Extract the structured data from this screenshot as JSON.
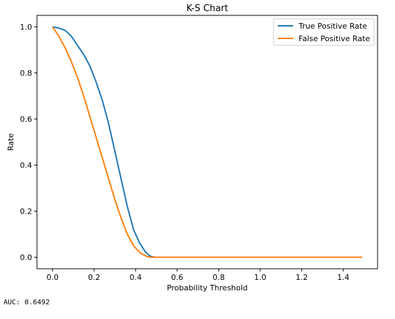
{
  "chart_data": {
    "type": "line",
    "title": "K-S Chart",
    "xlabel": "Probability Threshold",
    "ylabel": "Rate",
    "xlim": [
      -0.075,
      1.565
    ],
    "ylim": [
      -0.05,
      1.05
    ],
    "xticks": [
      "0.0",
      "0.2",
      "0.4",
      "0.6",
      "0.8",
      "1.0",
      "1.2",
      "1.4"
    ],
    "yticks": [
      "0.0",
      "0.2",
      "0.4",
      "0.6",
      "0.8",
      "1.0"
    ],
    "xtick_values": [
      0.0,
      0.2,
      0.4,
      0.6,
      0.8,
      1.0,
      1.2,
      1.4
    ],
    "ytick_values": [
      0.0,
      0.2,
      0.4,
      0.6,
      0.8,
      1.0
    ],
    "grid": false,
    "legend_position": "top-right",
    "series": [
      {
        "name": "True Positive Rate",
        "color": "#1f77b4",
        "x": [
          0.0,
          0.03,
          0.06,
          0.09,
          0.12,
          0.15,
          0.18,
          0.21,
          0.24,
          0.27,
          0.3,
          0.33,
          0.36,
          0.39,
          0.42,
          0.45,
          0.47,
          0.49,
          0.6,
          0.8,
          1.0,
          1.2,
          1.49
        ],
        "y": [
          1.0,
          0.995,
          0.985,
          0.96,
          0.92,
          0.88,
          0.83,
          0.76,
          0.68,
          0.58,
          0.46,
          0.34,
          0.22,
          0.12,
          0.06,
          0.02,
          0.005,
          0.0,
          0.0,
          0.0,
          0.0,
          0.0,
          0.0
        ]
      },
      {
        "name": "False Positive Rate",
        "color": "#ff7f0e",
        "x": [
          0.0,
          0.03,
          0.06,
          0.09,
          0.12,
          0.15,
          0.18,
          0.21,
          0.24,
          0.27,
          0.3,
          0.33,
          0.36,
          0.39,
          0.42,
          0.45,
          0.47,
          0.49,
          0.6,
          0.8,
          1.0,
          1.2,
          1.49
        ],
        "y": [
          1.0,
          0.96,
          0.91,
          0.85,
          0.78,
          0.7,
          0.61,
          0.52,
          0.43,
          0.34,
          0.25,
          0.17,
          0.1,
          0.05,
          0.02,
          0.005,
          0.0,
          0.0,
          0.0,
          0.0,
          0.0,
          0.0,
          0.0
        ]
      }
    ]
  },
  "footer": {
    "auc_text": "AUC: 0.6492"
  }
}
